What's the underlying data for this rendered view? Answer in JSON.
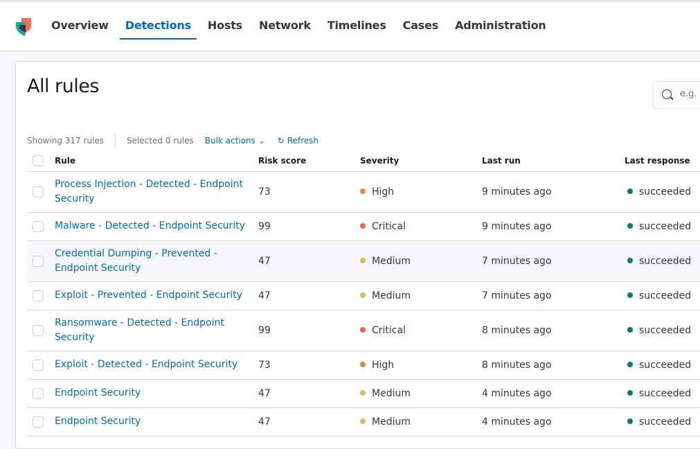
{
  "nav": {
    "tabs": [
      "Overview",
      "Detections",
      "Hosts",
      "Network",
      "Timelines",
      "Cases",
      "Administration"
    ],
    "active": "Detections"
  },
  "page": {
    "title": "All rules",
    "search_placeholder": "e.g."
  },
  "toolbar": {
    "showing": "Showing 317 rules",
    "selected": "Selected 0 rules",
    "bulk": "Bulk actions",
    "refresh": "Refresh"
  },
  "table": {
    "headers": [
      "Rule",
      "Risk score",
      "Severity",
      "Last run",
      "Last response"
    ],
    "rows": [
      {
        "rule": "Process Injection - Detected - Endpoint Security",
        "risk": "73",
        "severity": "High",
        "last_run": "9 minutes ago",
        "response": "succeeded"
      },
      {
        "rule": "Malware - Detected - Endpoint Security",
        "risk": "99",
        "severity": "Critical",
        "last_run": "9 minutes ago",
        "response": "succeeded"
      },
      {
        "rule": "Credential Dumping - Prevented - Endpoint Security",
        "risk": "47",
        "severity": "Medium",
        "last_run": "7 minutes ago",
        "response": "succeeded"
      },
      {
        "rule": "Exploit - Prevented - Endpoint Security",
        "risk": "47",
        "severity": "Medium",
        "last_run": "7 minutes ago",
        "response": "succeeded"
      },
      {
        "rule": "Ransomware - Detected - Endpoint Security",
        "risk": "99",
        "severity": "Critical",
        "last_run": "8 minutes ago",
        "response": "succeeded"
      },
      {
        "rule": "Exploit - Detected - Endpoint Security",
        "risk": "73",
        "severity": "High",
        "last_run": "8 minutes ago",
        "response": "succeeded"
      },
      {
        "rule": "Endpoint Security",
        "risk": "47",
        "severity": "Medium",
        "last_run": "4 minutes ago",
        "response": "succeeded"
      },
      {
        "rule": "Endpoint Security",
        "risk": "47",
        "severity": "Medium",
        "last_run": "4 minutes ago",
        "response": "succeeded"
      }
    ]
  },
  "colors": {
    "accent": "#006bb8",
    "High": "#da8b45",
    "Critical": "#e7664c",
    "Medium": "#d6bf57",
    "succeeded": "#017d73"
  }
}
